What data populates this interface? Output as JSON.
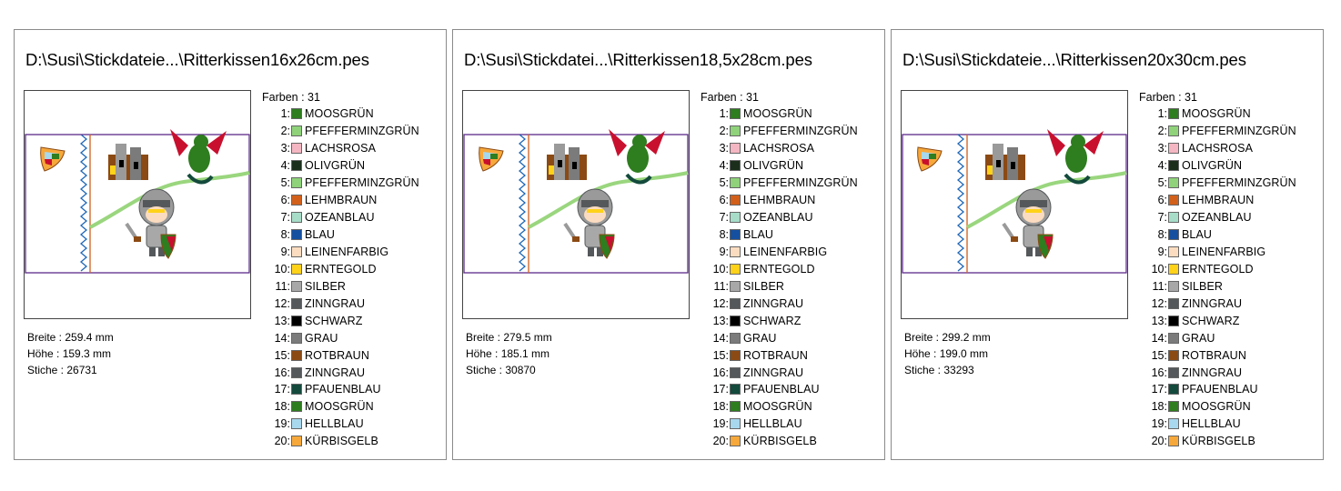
{
  "panels": [
    {
      "title": "D:\\Susi\\Stickdateie...\\Ritterkissen16x26cm.pes",
      "dims": [
        "Breite : 259.4 mm",
        "Höhe : 159.3 mm",
        "Stiche : 26731"
      ],
      "color_count": "Farben : 31"
    },
    {
      "title": "D:\\Susi\\Stickdatei...\\Ritterkissen18,5x28cm.pes",
      "dims": [
        "Breite : 279.5 mm",
        "Höhe : 185.1 mm",
        "Stiche : 30870"
      ],
      "color_count": "Farben : 31"
    },
    {
      "title": "D:\\Susi\\Stickdateie...\\Ritterkissen20x30cm.pes",
      "dims": [
        "Breite : 299.2 mm",
        "Höhe : 199.0 mm",
        "Stiche : 33293"
      ],
      "color_count": "Farben : 31"
    }
  ],
  "colors": [
    {
      "num": "1:",
      "name": "MOOSGRÜN",
      "hex": "#2e7d1f"
    },
    {
      "num": "2:",
      "name": "PFEFFERMINZGRÜN",
      "hex": "#8fd27a"
    },
    {
      "num": "3:",
      "name": "LACHSROSA",
      "hex": "#f4b6c2"
    },
    {
      "num": "4:",
      "name": "OLIVGRÜN",
      "hex": "#1b2e1c"
    },
    {
      "num": "5:",
      "name": "PFEFFERMINZGRÜN",
      "hex": "#8fd27a"
    },
    {
      "num": "6:",
      "name": "LEHMBRAUN",
      "hex": "#d2601a"
    },
    {
      "num": "7:",
      "name": "OZEANBLAU",
      "hex": "#a6dcc8"
    },
    {
      "num": "8:",
      "name": "BLAU",
      "hex": "#1550a0"
    },
    {
      "num": "9:",
      "name": "LEINENFARBIG",
      "hex": "#fbdcc0"
    },
    {
      "num": "10:",
      "name": "ERNTEGOLD",
      "hex": "#ffd21a"
    },
    {
      "num": "11:",
      "name": "SILBER",
      "hex": "#a8a8a8"
    },
    {
      "num": "12:",
      "name": "ZINNGRAU",
      "hex": "#55585a"
    },
    {
      "num": "13:",
      "name": "SCHWARZ",
      "hex": "#000000"
    },
    {
      "num": "14:",
      "name": "GRAU",
      "hex": "#7b7b7b"
    },
    {
      "num": "15:",
      "name": "ROTBRAUN",
      "hex": "#8b4a14"
    },
    {
      "num": "16:",
      "name": "ZINNGRAU",
      "hex": "#55585a"
    },
    {
      "num": "17:",
      "name": "PFAUENBLAU",
      "hex": "#134a3c"
    },
    {
      "num": "18:",
      "name": "MOOSGRÜN",
      "hex": "#2e7d1f"
    },
    {
      "num": "19:",
      "name": "HELLBLAU",
      "hex": "#a8d8ee"
    },
    {
      "num": "20:",
      "name": "KÜRBISGELB",
      "hex": "#f7a83a"
    }
  ]
}
